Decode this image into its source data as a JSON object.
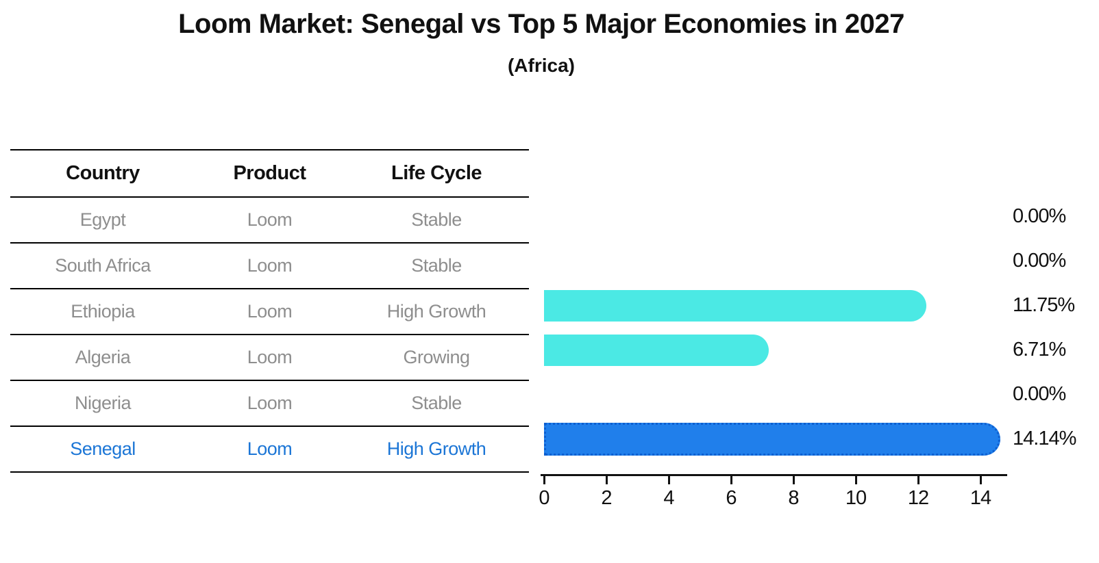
{
  "title": "Loom Market: Senegal vs Top 5 Major Economies in 2027",
  "subtitle": "(Africa)",
  "table": {
    "headers": [
      "Country",
      "Product",
      "Life Cycle"
    ],
    "rows": [
      {
        "country": "Egypt",
        "product": "Loom",
        "life_cycle": "Stable",
        "highlight": false
      },
      {
        "country": "South Africa",
        "product": "Loom",
        "life_cycle": "Stable",
        "highlight": false
      },
      {
        "country": "Ethiopia",
        "product": "Loom",
        "life_cycle": "High Growth",
        "highlight": false
      },
      {
        "country": "Algeria",
        "product": "Loom",
        "life_cycle": "Growing",
        "highlight": false
      },
      {
        "country": "Nigeria",
        "product": "Loom",
        "life_cycle": "Stable",
        "highlight": false
      },
      {
        "country": "Senegal",
        "product": "Loom",
        "life_cycle": "High Growth",
        "highlight": true
      }
    ]
  },
  "chart_data": {
    "type": "bar",
    "orientation": "horizontal",
    "title": "Loom Market: Senegal vs Top 5 Major Economies in 2027",
    "subtitle": "(Africa)",
    "categories": [
      "Egypt",
      "South Africa",
      "Ethiopia",
      "Algeria",
      "Nigeria",
      "Senegal"
    ],
    "values": [
      0.0,
      0.0,
      11.75,
      6.71,
      0.0,
      14.14
    ],
    "labels": [
      "0.00%",
      "0.00%",
      "11.75%",
      "6.71%",
      "0.00%",
      "14.14%"
    ],
    "x_ticks": [
      0,
      2,
      4,
      6,
      8,
      10,
      12,
      14
    ],
    "xlim": [
      0,
      14.85
    ],
    "grid": false,
    "highlight_index": 5,
    "xlabel": "",
    "ylabel": ""
  },
  "colors": {
    "background": "#FFFFFF",
    "text": "#111111",
    "row_text": "#8E8E8E",
    "highlight_text": "#1C76D6",
    "bar_default": "#4BE9E4",
    "bar_highlight": "#207FEB",
    "bar_highlight_border": "#0D5FD0"
  }
}
